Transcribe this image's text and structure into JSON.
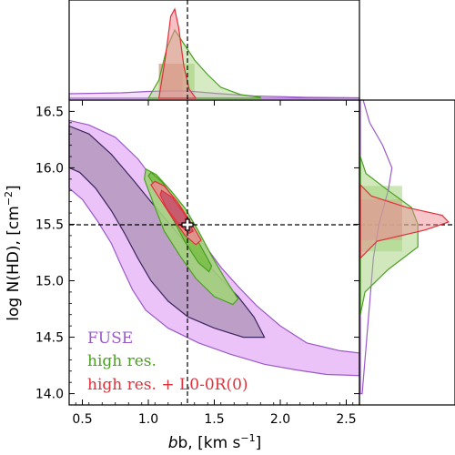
{
  "chart_data": {
    "type": "contour",
    "xlabel_main": "b, [km s",
    "xlabel_sup": "−1",
    "xlabel_close": "]",
    "ylabel_main": "log N(HD), [cm",
    "ylabel_sup": "−2",
    "ylabel_close": "]",
    "xlim": [
      0.4,
      2.6
    ],
    "ylim": [
      13.9,
      16.6
    ],
    "xticks": [
      0.5,
      1.0,
      1.5,
      2.0,
      2.5
    ],
    "xtick_labels": [
      "0.5",
      "1.0",
      "1.5",
      "2.0",
      "2.5"
    ],
    "yticks": [
      14.0,
      14.5,
      15.0,
      15.5,
      16.0,
      16.5
    ],
    "ytick_labels": [
      "14.0",
      "14.5",
      "15.0",
      "15.5",
      "16.0",
      "16.5"
    ],
    "reference_point": {
      "b": 1.3,
      "logN": 15.5
    },
    "colors": {
      "fuse": "#9b59c9",
      "fuse_fill_outer": "#e9b8f7",
      "fuse_fill_inner": "#b89ac0",
      "fuse_edge_inner": "#3a2560",
      "highres": "#4aa020",
      "highres_fill": "#a3d27c",
      "lo": "#e0303a",
      "lo_fill": "#ee8d95"
    },
    "legend": [
      "FUSE",
      "high res.",
      "high res. + L0-0R(0)"
    ],
    "series": [
      {
        "name": "FUSE",
        "contours": [
          {
            "level": "outer",
            "points": [
              [
                0.4,
                16.42
              ],
              [
                0.55,
                16.38
              ],
              [
                0.75,
                16.27
              ],
              [
                0.92,
                16.08
              ],
              [
                1.05,
                15.88
              ],
              [
                1.15,
                15.72
              ],
              [
                1.25,
                15.58
              ],
              [
                1.35,
                15.42
              ],
              [
                1.45,
                15.28
              ],
              [
                1.55,
                15.12
              ],
              [
                1.68,
                14.95
              ],
              [
                1.82,
                14.78
              ],
              [
                2.0,
                14.6
              ],
              [
                2.2,
                14.45
              ],
              [
                2.45,
                14.38
              ],
              [
                2.6,
                14.36
              ],
              [
                2.6,
                14.16
              ],
              [
                2.35,
                14.17
              ],
              [
                2.12,
                14.21
              ],
              [
                1.88,
                14.26
              ],
              [
                1.62,
                14.35
              ],
              [
                1.38,
                14.45
              ],
              [
                1.15,
                14.58
              ],
              [
                0.98,
                14.74
              ],
              [
                0.88,
                14.92
              ],
              [
                0.8,
                15.12
              ],
              [
                0.72,
                15.33
              ],
              [
                0.62,
                15.52
              ],
              [
                0.5,
                15.72
              ],
              [
                0.4,
                15.82
              ]
            ]
          },
          {
            "level": "inner",
            "points": [
              [
                0.4,
                16.37
              ],
              [
                0.55,
                16.3
              ],
              [
                0.72,
                16.12
              ],
              [
                0.88,
                15.9
              ],
              [
                1.02,
                15.7
              ],
              [
                1.15,
                15.52
              ],
              [
                1.28,
                15.34
              ],
              [
                1.42,
                15.18
              ],
              [
                1.55,
                15.02
              ],
              [
                1.68,
                14.86
              ],
              [
                1.8,
                14.68
              ],
              [
                1.88,
                14.5
              ],
              [
                1.72,
                14.5
              ],
              [
                1.5,
                14.58
              ],
              [
                1.3,
                14.68
              ],
              [
                1.15,
                14.82
              ],
              [
                1.02,
                15.0
              ],
              [
                0.92,
                15.2
              ],
              [
                0.82,
                15.42
              ],
              [
                0.72,
                15.62
              ],
              [
                0.6,
                15.82
              ],
              [
                0.48,
                15.96
              ],
              [
                0.4,
                16.0
              ]
            ]
          }
        ],
        "marginal_b": [
          [
            0.4,
            0.05
          ],
          [
            0.8,
            0.06
          ],
          [
            1.0,
            0.075
          ],
          [
            1.15,
            0.08
          ],
          [
            1.3,
            0.08
          ],
          [
            1.5,
            0.055
          ],
          [
            1.8,
            0.025
          ],
          [
            2.2,
            0.01
          ],
          [
            2.6,
            0.005
          ]
        ],
        "marginal_logN": [
          [
            14.0,
            0.02
          ],
          [
            14.4,
            0.06
          ],
          [
            14.8,
            0.1
          ],
          [
            15.2,
            0.14
          ],
          [
            15.5,
            0.2
          ],
          [
            15.8,
            0.3
          ],
          [
            16.0,
            0.34
          ],
          [
            16.2,
            0.24
          ],
          [
            16.4,
            0.1
          ],
          [
            16.6,
            0.03
          ]
        ]
      },
      {
        "name": "high res.",
        "contours": [
          {
            "level": "outer",
            "points": [
              [
                0.98,
                15.99
              ],
              [
                1.06,
                15.94
              ],
              [
                1.17,
                15.8
              ],
              [
                1.28,
                15.64
              ],
              [
                1.38,
                15.44
              ],
              [
                1.48,
                15.22
              ],
              [
                1.58,
                15.02
              ],
              [
                1.68,
                14.84
              ],
              [
                1.64,
                14.79
              ],
              [
                1.5,
                14.86
              ],
              [
                1.36,
                15.02
              ],
              [
                1.24,
                15.22
              ],
              [
                1.12,
                15.44
              ],
              [
                1.04,
                15.68
              ],
              [
                0.97,
                15.9
              ]
            ]
          },
          {
            "level": "inner",
            "points": [
              [
                1.02,
                15.96
              ],
              [
                1.1,
                15.88
              ],
              [
                1.2,
                15.72
              ],
              [
                1.3,
                15.52
              ],
              [
                1.4,
                15.3
              ],
              [
                1.48,
                15.13
              ],
              [
                1.46,
                15.08
              ],
              [
                1.38,
                15.16
              ],
              [
                1.28,
                15.34
              ],
              [
                1.18,
                15.56
              ],
              [
                1.08,
                15.78
              ],
              [
                1.0,
                15.93
              ]
            ]
          }
        ],
        "marginal_b": [
          [
            1.0,
            0.0
          ],
          [
            1.08,
            0.2
          ],
          [
            1.14,
            0.55
          ],
          [
            1.2,
            0.75
          ],
          [
            1.26,
            0.62
          ],
          [
            1.35,
            0.42
          ],
          [
            1.45,
            0.26
          ],
          [
            1.55,
            0.12
          ],
          [
            1.7,
            0.04
          ],
          [
            1.85,
            0.01
          ]
        ],
        "marginal_logN": [
          [
            14.7,
            0.0
          ],
          [
            14.9,
            0.05
          ],
          [
            15.1,
            0.3
          ],
          [
            15.3,
            0.62
          ],
          [
            15.5,
            0.62
          ],
          [
            15.65,
            0.55
          ],
          [
            15.8,
            0.3
          ],
          [
            15.95,
            0.06
          ],
          [
            16.1,
            0.0
          ]
        ],
        "band_b": [
          1.08,
          1.35
        ],
        "band_logN": [
          15.26,
          15.84
        ]
      },
      {
        "name": "high res. + L0-0R(0)",
        "contours": [
          {
            "level": "outer",
            "points": [
              [
                1.05,
                15.88
              ],
              [
                1.12,
                15.84
              ],
              [
                1.22,
                15.7
              ],
              [
                1.32,
                15.52
              ],
              [
                1.4,
                15.36
              ],
              [
                1.36,
                15.32
              ],
              [
                1.28,
                15.4
              ],
              [
                1.18,
                15.56
              ],
              [
                1.08,
                15.74
              ],
              [
                1.02,
                15.85
              ]
            ]
          },
          {
            "level": "inner",
            "points": [
              [
                1.1,
                15.8
              ],
              [
                1.18,
                15.74
              ],
              [
                1.27,
                15.6
              ],
              [
                1.34,
                15.44
              ],
              [
                1.31,
                15.42
              ],
              [
                1.23,
                15.5
              ],
              [
                1.14,
                15.64
              ],
              [
                1.09,
                15.76
              ]
            ]
          }
        ],
        "marginal_b": [
          [
            1.08,
            0.0
          ],
          [
            1.13,
            0.45
          ],
          [
            1.17,
            0.9
          ],
          [
            1.2,
            0.98
          ],
          [
            1.23,
            0.78
          ],
          [
            1.27,
            0.35
          ],
          [
            1.31,
            0.1
          ],
          [
            1.36,
            0.0
          ]
        ],
        "marginal_logN": [
          [
            15.2,
            0.0
          ],
          [
            15.35,
            0.18
          ],
          [
            15.45,
            0.7
          ],
          [
            15.52,
            0.95
          ],
          [
            15.58,
            0.88
          ],
          [
            15.65,
            0.5
          ],
          [
            15.75,
            0.12
          ],
          [
            15.85,
            0.0
          ]
        ],
        "band_b": [
          1.08,
          1.26
        ],
        "band_logN": [
          15.36,
          15.72
        ]
      }
    ]
  }
}
